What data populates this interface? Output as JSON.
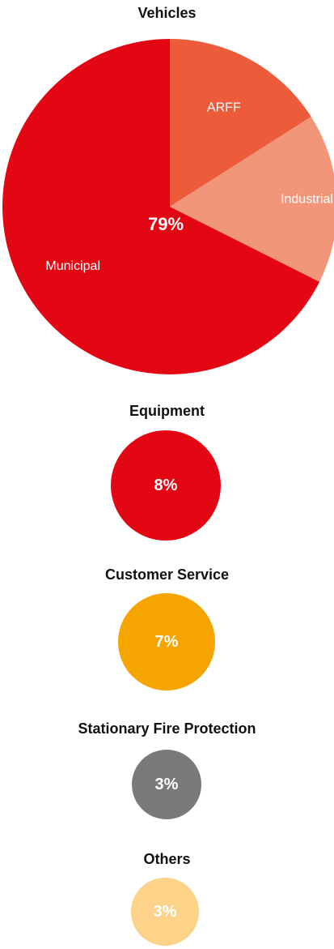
{
  "chart_data": [
    {
      "type": "pie",
      "title": "Vehicles",
      "center_label": "79%",
      "slices": [
        {
          "label": "ARFF",
          "share": 0.16,
          "color": "#ec5b3a"
        },
        {
          "label": "Industrial",
          "share": 0.164,
          "color": "#f2967a"
        },
        {
          "label": "Municipal",
          "share": 0.676,
          "color": "#e30613"
        }
      ]
    },
    {
      "type": "pie",
      "title": "Equipment",
      "center_label": "8%",
      "slices": [
        {
          "label": "",
          "share": 1.0,
          "color": "#e30613"
        }
      ]
    },
    {
      "type": "pie",
      "title": "Customer Service",
      "center_label": "7%",
      "slices": [
        {
          "label": "",
          "share": 1.0,
          "color": "#f5a400"
        }
      ]
    },
    {
      "type": "pie",
      "title": "Stationary Fire Protection",
      "center_label": "3%",
      "slices": [
        {
          "label": "",
          "share": 1.0,
          "color": "#7a7a79"
        }
      ]
    },
    {
      "type": "pie",
      "title": "Others",
      "center_label": "3%",
      "slices": [
        {
          "label": "",
          "share": 1.0,
          "color": "#fdd38a"
        }
      ]
    }
  ]
}
